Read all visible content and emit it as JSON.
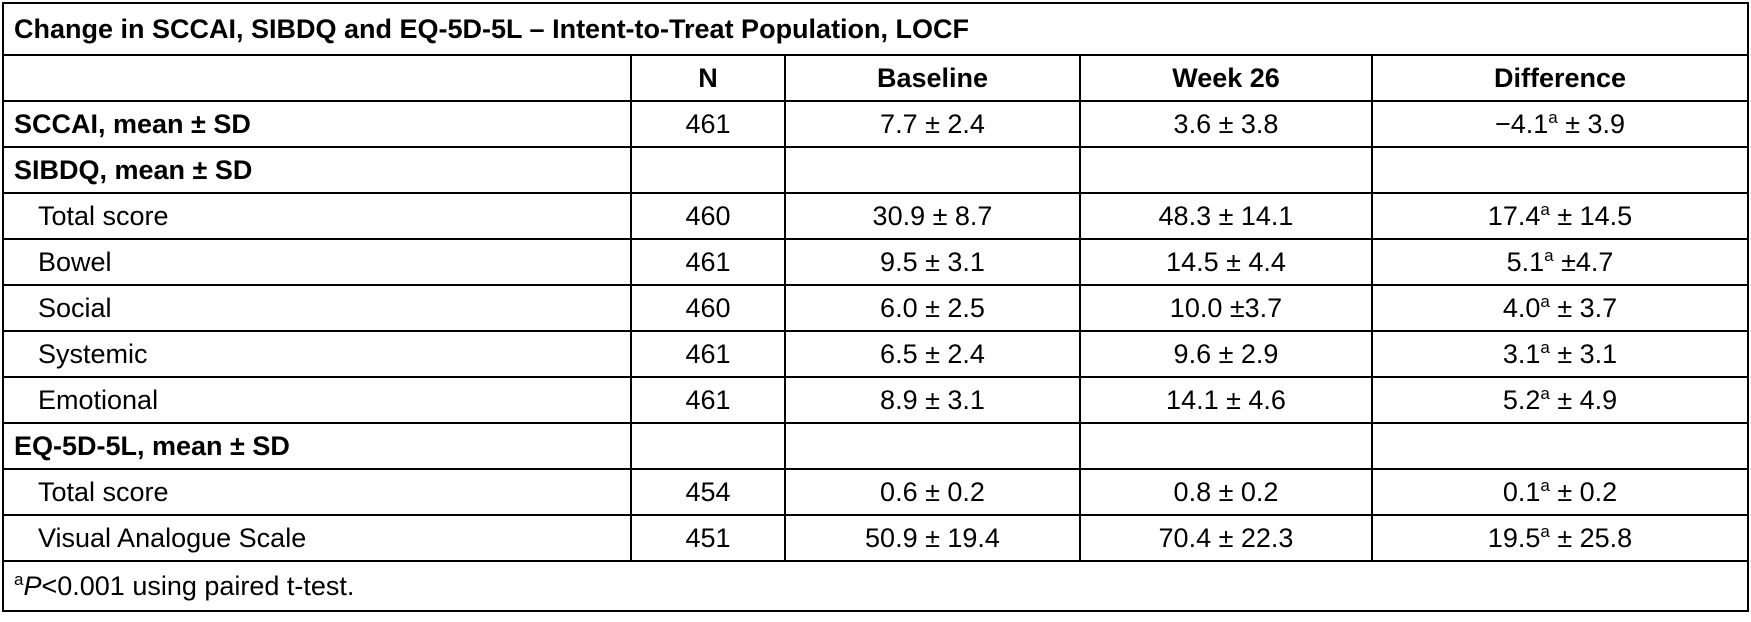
{
  "title": "Change in SCCAI, SIBDQ and EQ-5D-5L – Intent-to-Treat Population, LOCF",
  "columns": [
    "N",
    "Baseline",
    "Week 26",
    "Difference"
  ],
  "rows": [
    {
      "label": "SCCAI, mean ± SD",
      "kind": "section",
      "n": "461",
      "baseline": "7.7 ± 2.4",
      "week26": "3.6 ± 3.8",
      "diff_main": "−4.1",
      "diff_sup": "a",
      "diff_rest": " ± 3.9"
    },
    {
      "label": "SIBDQ, mean ± SD",
      "kind": "section",
      "n": "",
      "baseline": "",
      "week26": "",
      "diff_main": "",
      "diff_sup": "",
      "diff_rest": ""
    },
    {
      "label": "Total score",
      "kind": "sub",
      "n": "460",
      "baseline": "30.9 ± 8.7",
      "week26": "48.3 ± 14.1",
      "diff_main": "17.4",
      "diff_sup": "a",
      "diff_rest": " ± 14.5"
    },
    {
      "label": "Bowel",
      "kind": "sub",
      "n": "461",
      "baseline": "9.5 ± 3.1",
      "week26": "14.5 ± 4.4",
      "diff_main": "5.1",
      "diff_sup": "a",
      "diff_rest": " ±4.7"
    },
    {
      "label": "Social",
      "kind": "sub",
      "n": "460",
      "baseline": "6.0 ± 2.5",
      "week26": "10.0 ±3.7",
      "diff_main": "4.0",
      "diff_sup": "a",
      "diff_rest": " ± 3.7"
    },
    {
      "label": "Systemic",
      "kind": "sub",
      "n": "461",
      "baseline": "6.5 ± 2.4",
      "week26": "9.6 ± 2.9",
      "diff_main": "3.1",
      "diff_sup": "a",
      "diff_rest": " ± 3.1"
    },
    {
      "label": "Emotional",
      "kind": "sub",
      "n": "461",
      "baseline": "8.9 ± 3.1",
      "week26": "14.1 ± 4.6",
      "diff_main": "5.2",
      "diff_sup": "a",
      "diff_rest": " ± 4.9"
    },
    {
      "label": "EQ-5D-5L, mean ± SD",
      "kind": "section",
      "n": "",
      "baseline": "",
      "week26": "",
      "diff_main": "",
      "diff_sup": "",
      "diff_rest": ""
    },
    {
      "label": "Total score",
      "kind": "sub",
      "n": "454",
      "baseline": "0.6 ± 0.2",
      "week26": "0.8 ± 0.2",
      "diff_main": "0.1",
      "diff_sup": "a",
      "diff_rest": " ± 0.2"
    },
    {
      "label": "Visual Analogue Scale",
      "kind": "sub",
      "n": "451",
      "baseline": "50.9 ± 19.4",
      "week26": "70.4 ± 22.3",
      "diff_main": "19.5",
      "diff_sup": "a",
      "diff_rest": " ± 25.8"
    }
  ],
  "footnote": {
    "sup": "a",
    "italic": "P",
    "rest": "<0.001 using paired t-test."
  }
}
